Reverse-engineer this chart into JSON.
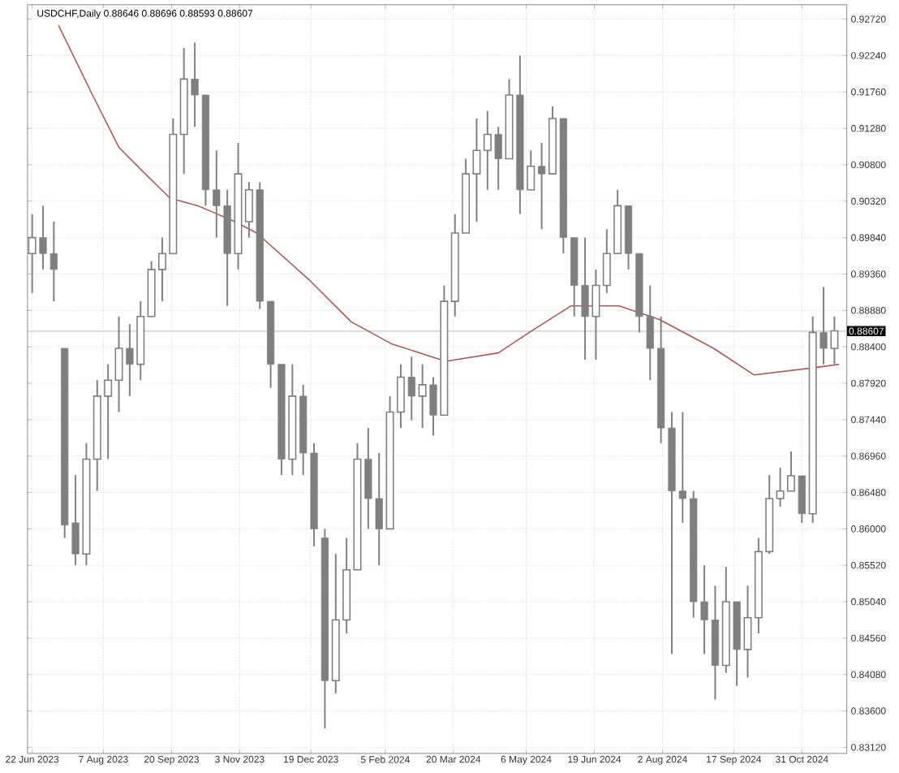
{
  "chart_data": {
    "type": "candlestick",
    "title": "USDCHF,Daily  0.88646 0.88696 0.88593 0.88607",
    "color": "#7f7f7f",
    "x": [
      "2023-06-22",
      "2023-06-29",
      "2023-07-06",
      "2023-07-13",
      "2023-07-20",
      "2023-07-27",
      "2023-08-03",
      "2023-08-10",
      "2023-08-17",
      "2023-08-24",
      "2023-08-31",
      "2023-09-07",
      "2023-09-14",
      "2023-09-21",
      "2023-09-28",
      "2023-10-05",
      "2023-10-12",
      "2023-10-19",
      "2023-10-26",
      "2023-11-02",
      "2023-11-09",
      "2023-11-16",
      "2023-11-23",
      "2023-11-30",
      "2023-12-07",
      "2023-12-14",
      "2023-12-21",
      "2023-12-28",
      "2024-01-04",
      "2024-01-11",
      "2024-01-18",
      "2024-01-25",
      "2024-02-01",
      "2024-02-08",
      "2024-02-15",
      "2024-02-22",
      "2024-02-29",
      "2024-03-07",
      "2024-03-14",
      "2024-03-21",
      "2024-03-28",
      "2024-04-04",
      "2024-04-11",
      "2024-04-18",
      "2024-04-25",
      "2024-05-02",
      "2024-05-09",
      "2024-05-16",
      "2024-05-23",
      "2024-05-30",
      "2024-06-06",
      "2024-06-13",
      "2024-06-20",
      "2024-06-27",
      "2024-07-04",
      "2024-07-11",
      "2024-07-18",
      "2024-07-25",
      "2024-08-01",
      "2024-08-08",
      "2024-08-15",
      "2024-08-22",
      "2024-08-29",
      "2024-09-05",
      "2024-09-12",
      "2024-09-19",
      "2024-09-26",
      "2024-10-03",
      "2024-10-10",
      "2024-10-17",
      "2024-10-24",
      "2024-10-31",
      "2024-11-07",
      "2024-11-14",
      "2024-11-21"
    ],
    "ohlc": [
      [
        0.8963,
        0.9015,
        0.8911,
        0.8984
      ],
      [
        0.8984,
        0.9026,
        0.8942,
        0.8963
      ],
      [
        0.8963,
        0.9005,
        0.89,
        0.8942
      ],
      [
        0.8838,
        0.8838,
        0.8588,
        0.8605
      ],
      [
        0.8608,
        0.8671,
        0.8552,
        0.8567
      ],
      [
        0.8567,
        0.8713,
        0.8552,
        0.8692
      ],
      [
        0.8692,
        0.8796,
        0.865,
        0.8775
      ],
      [
        0.8775,
        0.8817,
        0.8692,
        0.8796
      ],
      [
        0.8796,
        0.888,
        0.8754,
        0.8838
      ],
      [
        0.8838,
        0.887,
        0.8775,
        0.8817
      ],
      [
        0.8817,
        0.89,
        0.8796,
        0.888
      ],
      [
        0.888,
        0.8953,
        0.888,
        0.8942
      ],
      [
        0.8942,
        0.8984,
        0.89,
        0.8963
      ],
      [
        0.8963,
        0.9141,
        0.8963,
        0.912
      ],
      [
        0.912,
        0.9234,
        0.9068,
        0.9193
      ],
      [
        0.9193,
        0.9241,
        0.913,
        0.9172
      ],
      [
        0.9172,
        0.9172,
        0.9026,
        0.9047
      ],
      [
        0.9047,
        0.9099,
        0.8984,
        0.9026
      ],
      [
        0.9026,
        0.9047,
        0.8894,
        0.8963
      ],
      [
        0.8963,
        0.9109,
        0.8942,
        0.9068
      ],
      [
        0.9005,
        0.9057,
        0.8984,
        0.9047
      ],
      [
        0.9047,
        0.9057,
        0.889,
        0.89
      ],
      [
        0.89,
        0.89,
        0.8786,
        0.8817
      ],
      [
        0.8817,
        0.8817,
        0.8671,
        0.8692
      ],
      [
        0.8692,
        0.8817,
        0.8671,
        0.8775
      ],
      [
        0.8775,
        0.879,
        0.8671,
        0.87
      ],
      [
        0.87,
        0.8713,
        0.8577,
        0.86
      ],
      [
        0.8588,
        0.86,
        0.8337,
        0.84
      ],
      [
        0.84,
        0.8567,
        0.8383,
        0.848
      ],
      [
        0.848,
        0.8588,
        0.8462,
        0.8546
      ],
      [
        0.8546,
        0.8713,
        0.8546,
        0.8692
      ],
      [
        0.8692,
        0.8733,
        0.86,
        0.864
      ],
      [
        0.864,
        0.87,
        0.8552,
        0.86
      ],
      [
        0.86,
        0.8775,
        0.86,
        0.8754
      ],
      [
        0.8754,
        0.8817,
        0.8733,
        0.88
      ],
      [
        0.88,
        0.8827,
        0.8743,
        0.8775
      ],
      [
        0.8775,
        0.8817,
        0.8733,
        0.879
      ],
      [
        0.879,
        0.88,
        0.8723,
        0.875
      ],
      [
        0.875,
        0.8921,
        0.875,
        0.89
      ],
      [
        0.89,
        0.9015,
        0.888,
        0.899
      ],
      [
        0.899,
        0.9088,
        0.899,
        0.9068
      ],
      [
        0.9068,
        0.9141,
        0.9005,
        0.9099
      ],
      [
        0.9099,
        0.9151,
        0.9047,
        0.912
      ],
      [
        0.912,
        0.913,
        0.9047,
        0.9088
      ],
      [
        0.9088,
        0.9193,
        0.9088,
        0.9172
      ],
      [
        0.9172,
        0.9224,
        0.9015,
        0.9047
      ],
      [
        0.9047,
        0.9099,
        0.9047,
        0.9078
      ],
      [
        0.9078,
        0.9109,
        0.8995,
        0.9068
      ],
      [
        0.9068,
        0.9157,
        0.9068,
        0.9141
      ],
      [
        0.9141,
        0.9141,
        0.8963,
        0.8984
      ],
      [
        0.8984,
        0.8984,
        0.888,
        0.8921
      ],
      [
        0.8921,
        0.8984,
        0.8823,
        0.888
      ],
      [
        0.888,
        0.8942,
        0.8823,
        0.8921
      ],
      [
        0.8921,
        0.8995,
        0.8911,
        0.8963
      ],
      [
        0.8963,
        0.9047,
        0.8963,
        0.9026
      ],
      [
        0.9026,
        0.9026,
        0.8942,
        0.8963
      ],
      [
        0.8963,
        0.8963,
        0.8859,
        0.888
      ],
      [
        0.888,
        0.8921,
        0.8796,
        0.8838
      ],
      [
        0.8838,
        0.888,
        0.8713,
        0.8733
      ],
      [
        0.8733,
        0.8754,
        0.8435,
        0.865
      ],
      [
        0.865,
        0.8754,
        0.8608,
        0.864
      ],
      [
        0.864,
        0.865,
        0.8483,
        0.8504
      ],
      [
        0.8504,
        0.8552,
        0.8435,
        0.848
      ],
      [
        0.848,
        0.8525,
        0.8375,
        0.842
      ],
      [
        0.842,
        0.855,
        0.841,
        0.8504
      ],
      [
        0.8504,
        0.8504,
        0.8393,
        0.8441
      ],
      [
        0.8441,
        0.8525,
        0.8404,
        0.8483
      ],
      [
        0.8483,
        0.8588,
        0.8462,
        0.857
      ],
      [
        0.857,
        0.8671,
        0.8567,
        0.864
      ],
      [
        0.864,
        0.8681,
        0.8629,
        0.865
      ],
      [
        0.865,
        0.8702,
        0.865,
        0.867
      ],
      [
        0.867,
        0.867,
        0.8608,
        0.862
      ],
      [
        0.862,
        0.888,
        0.8608,
        0.8859
      ],
      [
        0.8859,
        0.8919,
        0.8817,
        0.8838
      ],
      [
        0.8838,
        0.888,
        0.8817,
        0.8861
      ]
    ],
    "series": [
      {
        "type": "line",
        "color": "#a65a5a",
        "x": [
          "2023-07-09",
          "2023-07-31",
          "2023-08-17",
          "2023-09-03",
          "2023-09-19",
          "2023-10-07",
          "2023-10-31",
          "2023-11-14",
          "2023-12-18",
          "2024-01-14",
          "2024-02-09",
          "2024-03-15",
          "2024-04-18",
          "2024-05-08",
          "2024-06-04",
          "2024-07-05",
          "2024-07-31",
          "2024-09-04",
          "2024-09-30",
          "2024-11-10",
          "2024-11-24"
        ],
        "values": [
          0.9264,
          0.9172,
          0.9103,
          0.9068,
          0.9036,
          0.9026,
          0.9005,
          0.899,
          0.8928,
          0.8873,
          0.8844,
          0.8821,
          0.8832,
          0.8859,
          0.8894,
          0.8894,
          0.8876,
          0.8838,
          0.8803,
          0.8813,
          0.8817
        ]
      }
    ],
    "xlim": [
      "2023-06-19",
      "2024-11-29"
    ],
    "ylim": [
      0.8304,
      0.9291
    ],
    "xticks": [
      {
        "value": "2023-06-22",
        "label": "22 Jun 2023"
      },
      {
        "value": "2023-08-07",
        "label": "7 Aug 2023"
      },
      {
        "value": "2023-09-20",
        "label": "20 Sep 2023"
      },
      {
        "value": "2023-11-03",
        "label": "3 Nov 2023"
      },
      {
        "value": "2023-12-19",
        "label": "19 Dec 2023"
      },
      {
        "value": "2024-02-05",
        "label": "5 Feb 2024"
      },
      {
        "value": "2024-03-20",
        "label": "20 Mar 2024"
      },
      {
        "value": "2024-05-06",
        "label": "6 May 2024"
      },
      {
        "value": "2024-06-19",
        "label": "19 Jun 2024"
      },
      {
        "value": "2024-08-02",
        "label": "2 Aug 2024"
      },
      {
        "value": "2024-09-17",
        "label": "17 Sep 2024"
      },
      {
        "value": "2024-10-31",
        "label": "31 Oct 2024"
      }
    ],
    "yticks": [
      {
        "value": 0.8312,
        "label": "0.83120"
      },
      {
        "value": 0.836,
        "label": "0.83600"
      },
      {
        "value": 0.8408,
        "label": "0.84080"
      },
      {
        "value": 0.8456,
        "label": "0.84560"
      },
      {
        "value": 0.8504,
        "label": "0.85040"
      },
      {
        "value": 0.8552,
        "label": "0.85520"
      },
      {
        "value": 0.86,
        "label": "0.86000"
      },
      {
        "value": 0.8648,
        "label": "0.86480"
      },
      {
        "value": 0.8696,
        "label": "0.86960"
      },
      {
        "value": 0.8744,
        "label": "0.87440"
      },
      {
        "value": 0.8792,
        "label": "0.87920"
      },
      {
        "value": 0.884,
        "label": "0.88400"
      },
      {
        "value": 0.8888,
        "label": "0.88880"
      },
      {
        "value": 0.8936,
        "label": "0.89360"
      },
      {
        "value": 0.8984,
        "label": "0.89840"
      },
      {
        "value": 0.9032,
        "label": "0.90320"
      },
      {
        "value": 0.908,
        "label": "0.90800"
      },
      {
        "value": 0.9128,
        "label": "0.91280"
      },
      {
        "value": 0.9176,
        "label": "0.91760"
      },
      {
        "value": 0.9224,
        "label": "0.92240"
      },
      {
        "value": 0.9272,
        "label": "0.92720"
      }
    ],
    "grid": true,
    "ref_lines": [
      {
        "axis": "y",
        "value": 0.88607,
        "label": "0.88607",
        "color": "#c8c8c8"
      }
    ]
  }
}
